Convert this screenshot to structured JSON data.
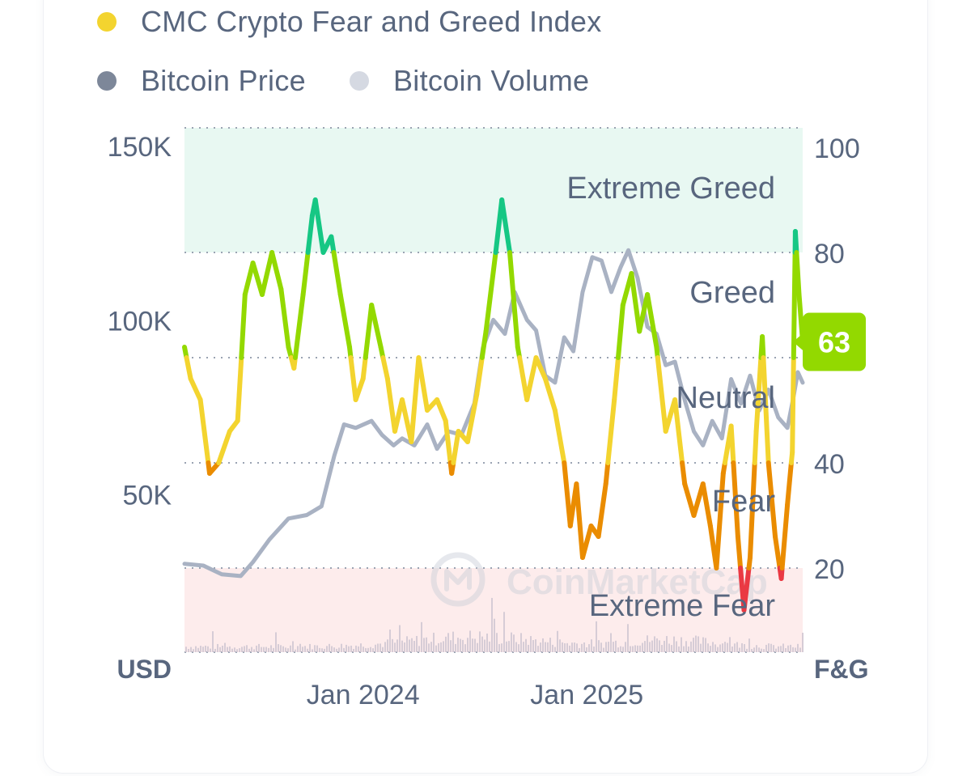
{
  "legend": [
    {
      "label": "CMC Crypto Fear and Greed Index",
      "color": "#f3d42f"
    },
    {
      "label": "Bitcoin Price",
      "color": "#7d8799"
    },
    {
      "label": "Bitcoin Volume",
      "color": "#d5d9e2"
    }
  ],
  "colors": {
    "extreme_fear": "#ea3943",
    "fear": "#ea8c00",
    "neutral": "#f3d42f",
    "greed": "#93d900",
    "extreme_greed": "#16c784",
    "price_line": "#a9b2c3",
    "volume_bars": "#d6ccd6",
    "extreme_greed_zone": "#e8f8f2",
    "extreme_fear_zone": "#fdecec",
    "badge": "#93d900"
  },
  "chart_data": {
    "type": "line",
    "left_axis_unit": "USD",
    "right_axis_unit": "F&G",
    "left_ticks": [
      "150K",
      "100K",
      "50K"
    ],
    "left_tick_values": [
      150000,
      100000,
      50000
    ],
    "right_ticks": [
      "100",
      "80",
      "60",
      "40",
      "20"
    ],
    "right_tick_values": [
      100,
      80,
      60,
      40,
      20
    ],
    "x_ticks": [
      "Jan 2024",
      "Jan 2025"
    ],
    "x_tick_values": [
      "2024-01-01",
      "2025-01-01"
    ],
    "x_range": [
      "2023-03-15",
      "2025-12-20"
    ],
    "price_range": [
      0,
      150000
    ],
    "fg_range": [
      0,
      100
    ],
    "zones": [
      {
        "label": "Extreme Greed",
        "from": 80,
        "to": 100
      },
      {
        "label": "Greed",
        "from": 60,
        "to": 80
      },
      {
        "label": "Neutral",
        "from": 40,
        "to": 60
      },
      {
        "label": "Fear",
        "from": 20,
        "to": 40
      },
      {
        "label": "Extreme Fear",
        "from": 0,
        "to": 20
      }
    ],
    "current_value": "63",
    "watermark": "CoinMarketCap",
    "series": [
      {
        "name": "CMC Crypto Fear and Greed Index",
        "axis": "right",
        "points": [
          [
            "2023-03-15",
            62
          ],
          [
            "2023-03-25",
            56
          ],
          [
            "2023-04-10",
            52
          ],
          [
            "2023-04-25",
            38
          ],
          [
            "2023-05-10",
            40
          ],
          [
            "2023-05-28",
            46
          ],
          [
            "2023-06-10",
            48
          ],
          [
            "2023-06-22",
            72
          ],
          [
            "2023-07-05",
            78
          ],
          [
            "2023-07-20",
            72
          ],
          [
            "2023-08-05",
            80
          ],
          [
            "2023-08-20",
            73
          ],
          [
            "2023-09-01",
            62
          ],
          [
            "2023-09-10",
            58
          ],
          [
            "2023-09-25",
            72
          ],
          [
            "2023-10-10",
            87
          ],
          [
            "2023-10-15",
            90
          ],
          [
            "2023-10-28",
            80
          ],
          [
            "2023-11-10",
            83
          ],
          [
            "2023-11-25",
            72
          ],
          [
            "2023-12-10",
            62
          ],
          [
            "2023-12-20",
            52
          ],
          [
            "2024-01-01",
            56
          ],
          [
            "2024-01-15",
            70
          ],
          [
            "2024-01-30",
            62
          ],
          [
            "2024-02-10",
            56
          ],
          [
            "2024-02-22",
            46
          ],
          [
            "2024-03-05",
            52
          ],
          [
            "2024-03-20",
            44
          ],
          [
            "2024-04-01",
            60
          ],
          [
            "2024-04-15",
            50
          ],
          [
            "2024-05-01",
            52
          ],
          [
            "2024-05-15",
            48
          ],
          [
            "2024-05-25",
            38
          ],
          [
            "2024-06-05",
            46
          ],
          [
            "2024-06-20",
            44
          ],
          [
            "2024-07-05",
            53
          ],
          [
            "2024-07-20",
            65
          ],
          [
            "2024-08-05",
            80
          ],
          [
            "2024-08-15",
            90
          ],
          [
            "2024-08-28",
            80
          ],
          [
            "2024-09-10",
            62
          ],
          [
            "2024-09-25",
            52
          ],
          [
            "2024-10-10",
            60
          ],
          [
            "2024-10-25",
            56
          ],
          [
            "2024-11-10",
            50
          ],
          [
            "2024-11-25",
            40
          ],
          [
            "2024-12-05",
            28
          ],
          [
            "2024-12-15",
            36
          ],
          [
            "2024-12-25",
            22
          ],
          [
            "2025-01-08",
            28
          ],
          [
            "2025-01-20",
            26
          ],
          [
            "2025-02-01",
            36
          ],
          [
            "2025-02-15",
            52
          ],
          [
            "2025-03-01",
            70
          ],
          [
            "2025-03-15",
            76
          ],
          [
            "2025-03-28",
            65
          ],
          [
            "2025-04-10",
            72
          ],
          [
            "2025-04-25",
            62
          ],
          [
            "2025-05-10",
            46
          ],
          [
            "2025-05-25",
            52
          ],
          [
            "2025-06-10",
            36
          ],
          [
            "2025-06-25",
            30
          ],
          [
            "2025-07-10",
            36
          ],
          [
            "2025-07-22",
            28
          ],
          [
            "2025-08-01",
            20
          ],
          [
            "2025-08-12",
            38
          ],
          [
            "2025-08-25",
            47
          ],
          [
            "2025-09-05",
            26
          ],
          [
            "2025-09-15",
            12
          ],
          [
            "2025-09-25",
            22
          ],
          [
            "2025-10-05",
            46
          ],
          [
            "2025-10-15",
            64
          ],
          [
            "2025-10-25",
            40
          ],
          [
            "2025-11-05",
            26
          ],
          [
            "2025-11-15",
            18
          ],
          [
            "2025-11-25",
            32
          ],
          [
            "2025-12-03",
            42
          ],
          [
            "2025-12-08",
            84
          ],
          [
            "2025-12-14",
            72
          ],
          [
            "2025-12-20",
            63
          ]
        ]
      },
      {
        "name": "Bitcoin Price",
        "axis": "left",
        "points": [
          [
            "2023-03-15",
            30000
          ],
          [
            "2023-04-15",
            29500
          ],
          [
            "2023-05-15",
            27000
          ],
          [
            "2023-06-15",
            26500
          ],
          [
            "2023-07-05",
            30500
          ],
          [
            "2023-08-01",
            37000
          ],
          [
            "2023-09-01",
            43000
          ],
          [
            "2023-10-01",
            44000
          ],
          [
            "2023-10-25",
            46500
          ],
          [
            "2023-11-15",
            61000
          ],
          [
            "2023-12-01",
            70000
          ],
          [
            "2023-12-20",
            69000
          ],
          [
            "2024-01-15",
            71000
          ],
          [
            "2024-02-01",
            67000
          ],
          [
            "2024-02-20",
            64000
          ],
          [
            "2024-03-05",
            66000
          ],
          [
            "2024-03-25",
            64000
          ],
          [
            "2024-04-15",
            70000
          ],
          [
            "2024-05-01",
            63000
          ],
          [
            "2024-05-20",
            68000
          ],
          [
            "2024-06-10",
            67000
          ],
          [
            "2024-07-01",
            76000
          ],
          [
            "2024-07-15",
            92000
          ],
          [
            "2024-08-01",
            100000
          ],
          [
            "2024-08-20",
            96000
          ],
          [
            "2024-09-05",
            108000
          ],
          [
            "2024-09-25",
            100000
          ],
          [
            "2024-10-10",
            97000
          ],
          [
            "2024-10-25",
            84000
          ],
          [
            "2024-11-10",
            82000
          ],
          [
            "2024-11-25",
            95000
          ],
          [
            "2024-12-10",
            91000
          ],
          [
            "2024-12-25",
            108000
          ],
          [
            "2025-01-10",
            118000
          ],
          [
            "2025-01-25",
            117000
          ],
          [
            "2025-02-10",
            108000
          ],
          [
            "2025-02-25",
            115000
          ],
          [
            "2025-03-10",
            120000
          ],
          [
            "2025-03-25",
            112000
          ],
          [
            "2025-04-10",
            98000
          ],
          [
            "2025-04-25",
            96000
          ],
          [
            "2025-05-10",
            87000
          ],
          [
            "2025-05-25",
            88000
          ],
          [
            "2025-06-10",
            77000
          ],
          [
            "2025-06-25",
            68000
          ],
          [
            "2025-07-10",
            64000
          ],
          [
            "2025-07-25",
            71000
          ],
          [
            "2025-08-10",
            66000
          ],
          [
            "2025-08-25",
            83000
          ],
          [
            "2025-09-10",
            76000
          ],
          [
            "2025-09-25",
            84000
          ],
          [
            "2025-10-10",
            74000
          ],
          [
            "2025-10-25",
            80000
          ],
          [
            "2025-11-10",
            72000
          ],
          [
            "2025-11-25",
            69000
          ],
          [
            "2025-12-05",
            78000
          ],
          [
            "2025-12-12",
            85000
          ],
          [
            "2025-12-20",
            82000
          ]
        ]
      }
    ]
  }
}
